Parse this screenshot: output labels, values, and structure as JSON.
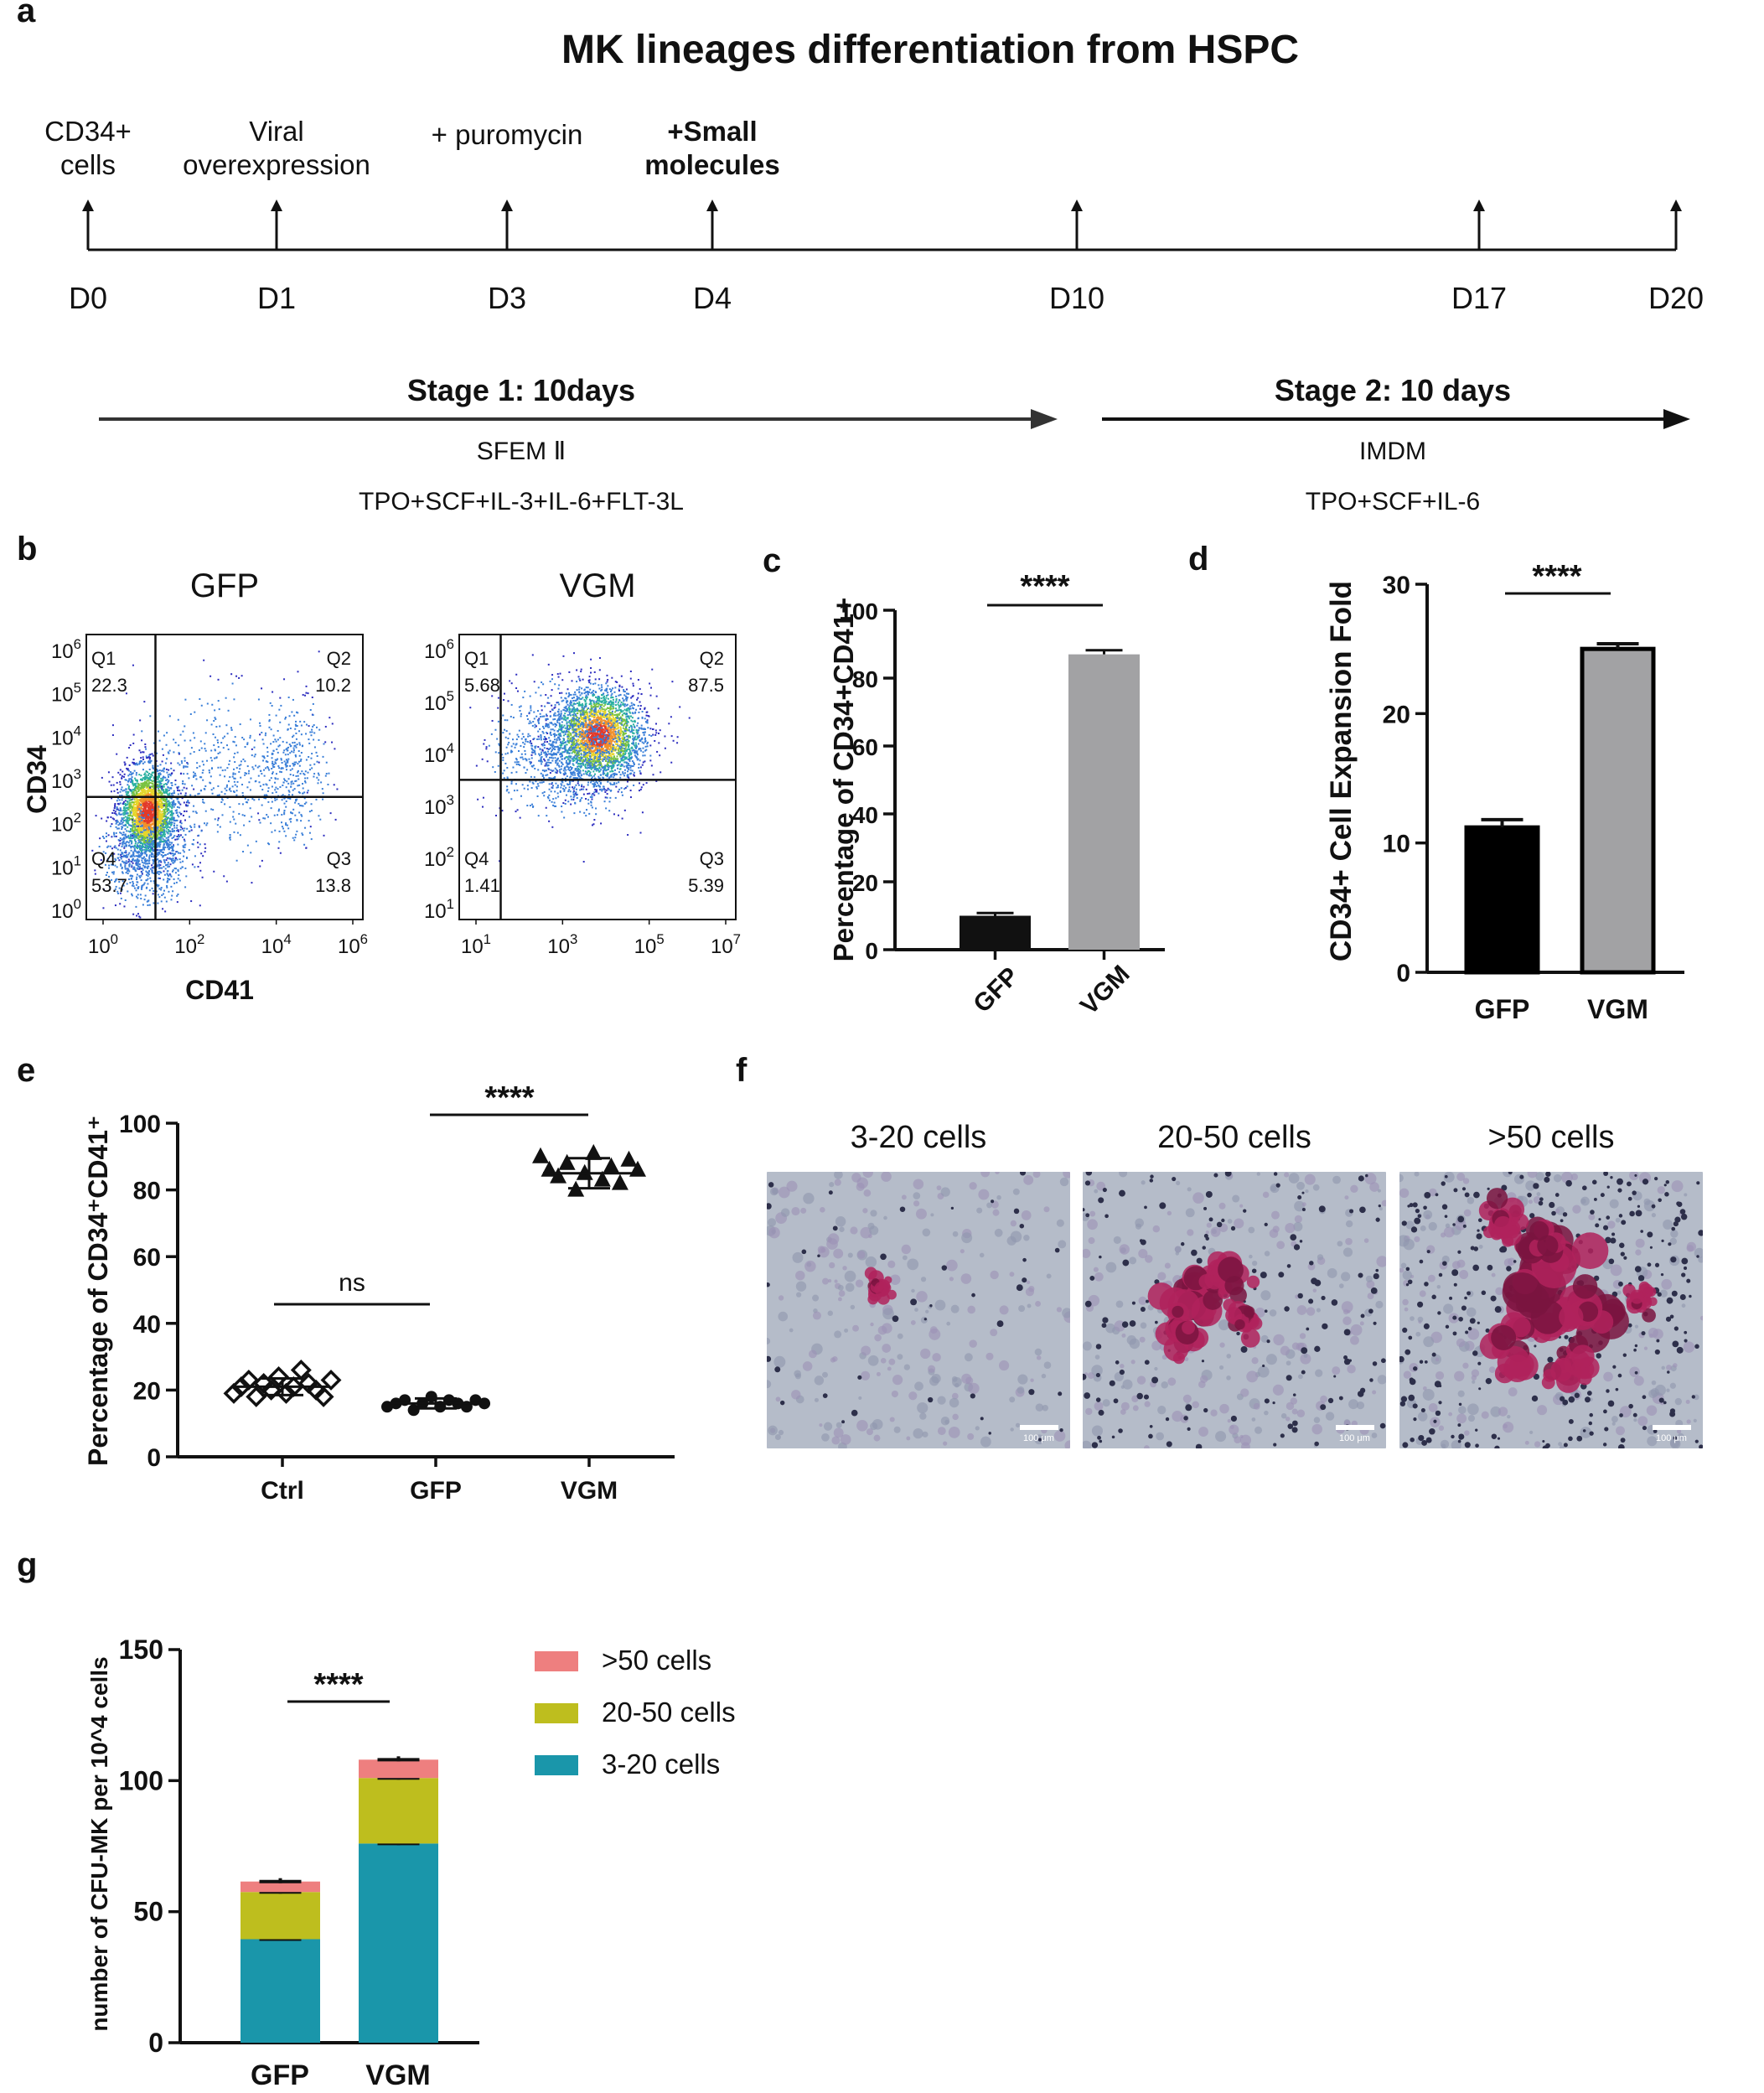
{
  "panel_letters": [
    "a",
    "b",
    "c",
    "d",
    "e",
    "f",
    "g"
  ],
  "timeline": {
    "title": "MK lineages differentiation from HSPC",
    "events": [
      {
        "label": "CD34+\ncells",
        "day": "D0",
        "bold": false
      },
      {
        "label": "Viral\noverexpression",
        "day": "D1",
        "bold": false
      },
      {
        "label": "+ puromycin",
        "day": "D3",
        "bold": false
      },
      {
        "label": "+Small\nmolecules",
        "day": "D4",
        "bold": true
      },
      {
        "label": "",
        "day": "D10",
        "bold": false
      },
      {
        "label": "",
        "day": "D17",
        "bold": false
      },
      {
        "label": "",
        "day": "D20",
        "bold": false
      }
    ],
    "stage1": {
      "title": "Stage 1: 10days",
      "medium": "SFEM Ⅱ",
      "factors": "TPO+SCF+IL-3+IL-6+FLT-3L"
    },
    "stage2": {
      "title": "Stage 2: 10 days",
      "medium": "IMDM",
      "factors": "TPO+SCF+IL-6"
    }
  },
  "chart_data": [
    {
      "panel": "b",
      "type": "scatter",
      "title": "GFP",
      "xlabel": "CD41",
      "ylabel": "CD34",
      "x_tick_labels": [
        "10^0",
        "10^2",
        "10^4",
        "10^6"
      ],
      "y_tick_labels": [
        "10^0",
        "10^1",
        "10^2",
        "10^3",
        "10^4",
        "10^5",
        "10^6"
      ],
      "quadrants": [
        {
          "name": "Q1",
          "value": "22.3"
        },
        {
          "name": "Q2",
          "value": "10.2"
        },
        {
          "name": "Q3",
          "value": "13.8"
        },
        {
          "name": "Q4",
          "value": "53.7"
        }
      ]
    },
    {
      "panel": "b",
      "type": "scatter",
      "title": "VGM",
      "x_tick_labels": [
        "10^1",
        "10^3",
        "10^5",
        "10^7"
      ],
      "y_tick_labels": [
        "10^1",
        "10^2",
        "10^3",
        "10^4",
        "10^5",
        "10^6"
      ],
      "quadrants": [
        {
          "name": "Q1",
          "value": "5.68"
        },
        {
          "name": "Q2",
          "value": "87.5"
        },
        {
          "name": "Q3",
          "value": "5.39"
        },
        {
          "name": "Q4",
          "value": "1.41"
        }
      ]
    },
    {
      "panel": "c",
      "type": "bar",
      "categories": [
        "GFP",
        "VGM"
      ],
      "values": [
        10,
        87
      ],
      "errors": [
        0.8,
        1.2
      ],
      "colors": [
        "#111111",
        "#a2a2a4"
      ],
      "ylabel": "Percentage of CD34+CD41+",
      "ylim": [
        0,
        100
      ],
      "yticks": [
        0,
        20,
        40,
        60,
        80,
        100
      ],
      "significance": "****"
    },
    {
      "panel": "d",
      "type": "bar",
      "categories": [
        "GFP",
        "VGM"
      ],
      "values": [
        11.2,
        25
      ],
      "errors": [
        0.6,
        0.4
      ],
      "colors": [
        "#000000",
        "#a2a2a4"
      ],
      "ylabel": "CD34+ Cell Expansion Fold",
      "ylim": [
        0,
        30
      ],
      "yticks": [
        0,
        10,
        20,
        30
      ],
      "significance": "****"
    },
    {
      "panel": "e",
      "type": "scatter",
      "categories": [
        "Ctrl",
        "GFP",
        "VGM"
      ],
      "series": [
        {
          "category": "Ctrl",
          "marker": "diamond-open",
          "values": [
            19,
            21,
            23,
            18,
            22,
            20,
            24,
            19,
            21,
            26,
            22,
            20,
            18,
            23
          ]
        },
        {
          "category": "GFP",
          "marker": "circle",
          "values": [
            15,
            16,
            17,
            14,
            16,
            18,
            15,
            17,
            16,
            15,
            17,
            16
          ]
        },
        {
          "category": "VGM",
          "marker": "triangle",
          "values": [
            90,
            86,
            84,
            88,
            80,
            85,
            91,
            83,
            87,
            82,
            89,
            86
          ]
        }
      ],
      "means": [
        21,
        16,
        85
      ],
      "sds": [
        2.5,
        1.5,
        4.5
      ],
      "ylabel": "Percentage of CD34⁺CD41⁺",
      "ylim": [
        0,
        100
      ],
      "yticks": [
        0,
        20,
        40,
        60,
        80,
        100
      ],
      "significance": [
        {
          "between": [
            "Ctrl",
            "GFP"
          ],
          "label": "ns"
        },
        {
          "between": [
            "GFP",
            "VGM"
          ],
          "label": "****"
        }
      ]
    },
    {
      "panel": "g",
      "type": "bar",
      "stacked": true,
      "categories": [
        "GFP",
        "VGM"
      ],
      "series": [
        {
          "name": "3-20 cells",
          "color": "#1a96aa",
          "values": [
            39.5,
            76
          ]
        },
        {
          "name": "20-50 cells",
          "color": "#bebe1e",
          "values": [
            18,
            25
          ]
        },
        {
          "name": ">50 cells",
          "color": "#ee7f7f",
          "values": [
            4,
            7
          ]
        }
      ],
      "errors": [
        1,
        1
      ],
      "ylabel": "number of CFU-MK per 10^4 cells",
      "ylim": [
        0,
        150
      ],
      "yticks": [
        0,
        50,
        100,
        150
      ],
      "significance": "****"
    }
  ],
  "micrographs": {
    "labels": [
      "3-20 cells",
      "20-50 cells",
      ">50 cells"
    ],
    "scale_bar": "100 μm"
  }
}
